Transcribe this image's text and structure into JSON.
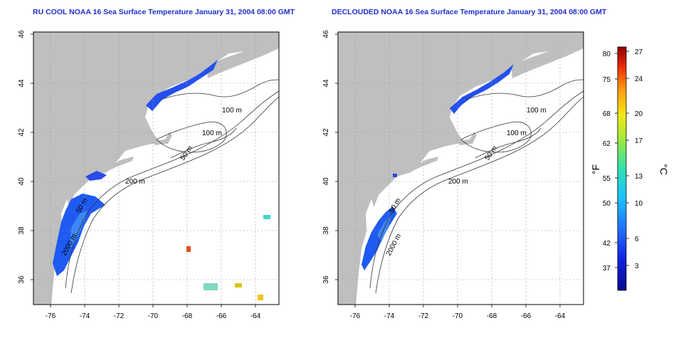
{
  "panels": [
    {
      "id": "left",
      "title": "RU COOL NOAA 16 Sea Surface Temperature January 31, 2004 08:00 GMT"
    },
    {
      "id": "right",
      "title": "DECLOUDED NOAA 16 Sea Surface Temperature January 31, 2004 08:00 GMT"
    }
  ],
  "axes": {
    "x_ticks": [
      "-76",
      "-74",
      "-72",
      "-70",
      "-68",
      "-66",
      "-64"
    ],
    "y_ticks": [
      "36",
      "38",
      "40",
      "42",
      "44",
      "46"
    ],
    "lon_range": [
      -77.0,
      -63.0
    ],
    "lat_range": [
      35.0,
      46.0
    ]
  },
  "contour_labels": [
    "100 m",
    "100 m",
    "50 m",
    "200 m",
    "50 m",
    "2000 m"
  ],
  "colorbar": {
    "fahrenheit_label": "°F",
    "celsius_label": "°C",
    "fahrenheit_ticks": [
      "80",
      "75",
      "68",
      "62",
      "55",
      "50",
      "42",
      "37"
    ],
    "celsius_ticks": [
      "27",
      "24",
      "20",
      "17",
      "13",
      "10",
      "6",
      "3"
    ],
    "range_c": [
      0,
      28
    ]
  },
  "colors": {
    "title": "#1f2fd0",
    "land": "#bfbfbf",
    "ocean": "#ffffff",
    "contour": "#333333",
    "grid": "#9a9a9a"
  }
}
